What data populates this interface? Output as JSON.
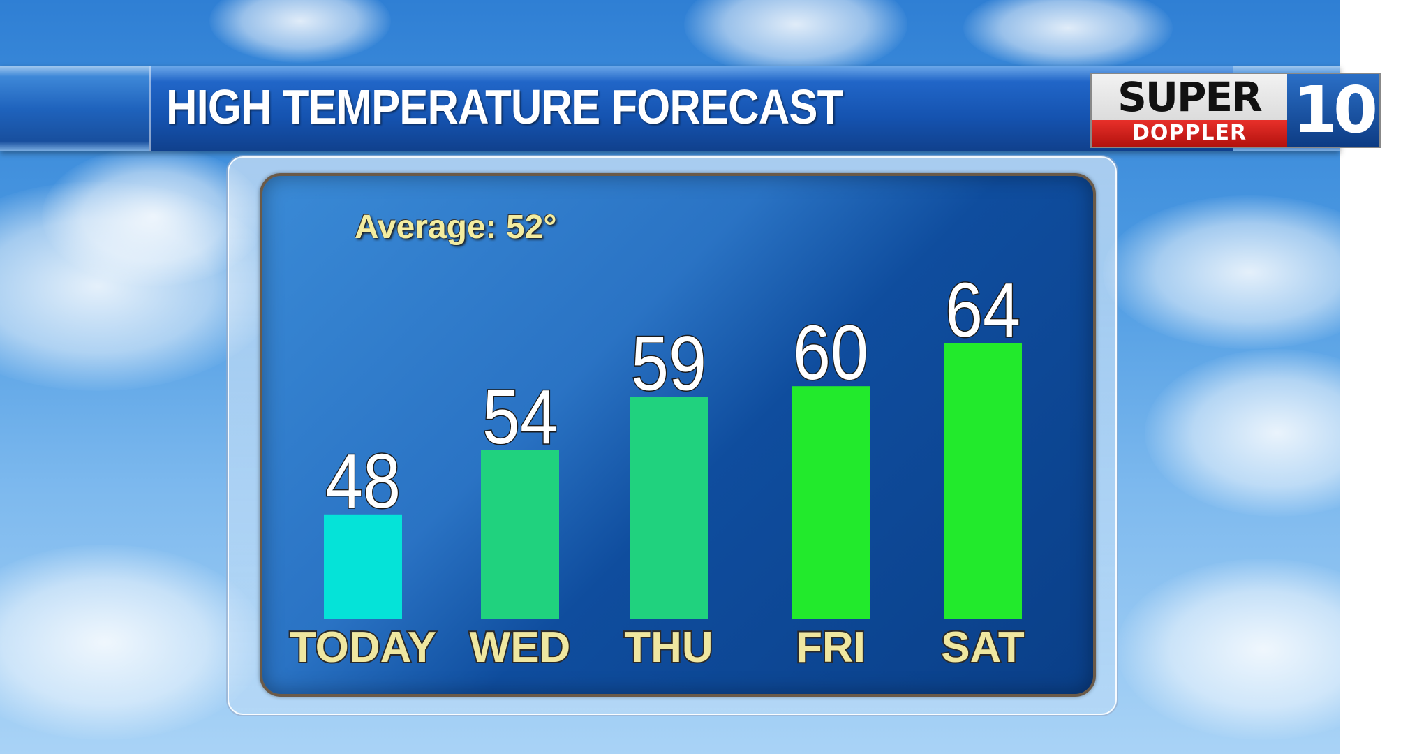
{
  "header": {
    "title": "HIGH TEMPERATURE FORECAST",
    "logo": {
      "super": "SUPER",
      "doppler": "DOPPLER",
      "channel": "10"
    }
  },
  "average_label": "Average: 52°",
  "colors": {
    "bar_today": "#05e3d8",
    "bar_mid": "#20d27e",
    "bar_warm": "#22ea2c",
    "label_text": "#efe7a0"
  },
  "chart_data": {
    "type": "bar",
    "title": "HIGH TEMPERATURE FORECAST",
    "categories": [
      "TODAY",
      "WED",
      "THU",
      "FRI",
      "SAT"
    ],
    "values": [
      48,
      54,
      59,
      60,
      64
    ],
    "annotation": "Average: 52°",
    "grid": false,
    "legend": "none"
  }
}
